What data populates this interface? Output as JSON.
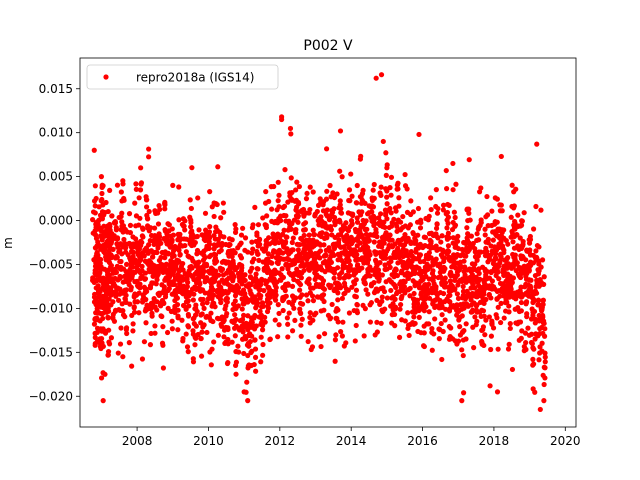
{
  "chart_data": {
    "type": "scatter",
    "title": "P002 V",
    "xlabel": "",
    "ylabel": "m",
    "xlim": [
      2006.4,
      2020.3
    ],
    "ylim": [
      -0.0235,
      0.0185
    ],
    "xticks": [
      2008,
      2010,
      2012,
      2014,
      2016,
      2018,
      2020
    ],
    "xtick_labels": [
      "2008",
      "2010",
      "2012",
      "2014",
      "2016",
      "2018",
      "2020"
    ],
    "yticks": [
      -0.02,
      -0.015,
      -0.01,
      -0.005,
      0.0,
      0.005,
      0.01,
      0.015
    ],
    "ytick_labels": [
      "−0.020",
      "−0.015",
      "−0.010",
      "−0.005",
      "0.000",
      "0.005",
      "0.010",
      "0.015"
    ],
    "grid": false,
    "legend_position": "top-left",
    "series": [
      {
        "name": "repro2018a (IGS14)",
        "color": "#ff0000",
        "marker": "circle",
        "x": [
          2006.8,
          2006.85,
          2006.9,
          2006.95,
          2007.0,
          2007.05,
          2007.1,
          2007.15,
          2007.2,
          2007.25,
          2007.3,
          2007.4,
          2007.5,
          2007.6,
          2007.7,
          2007.8,
          2007.9,
          2008.0,
          2008.1,
          2008.2,
          2008.3,
          2008.4,
          2008.5,
          2008.6,
          2008.7,
          2008.8,
          2008.9,
          2009.0,
          2009.1,
          2009.2,
          2009.3,
          2009.4,
          2009.5,
          2009.6,
          2009.7,
          2009.8,
          2009.9,
          2010.0,
          2010.1,
          2010.2,
          2010.3,
          2010.4,
          2010.5,
          2010.6,
          2010.7,
          2010.8,
          2010.9,
          2011.0,
          2011.1,
          2011.2,
          2011.3,
          2011.4,
          2011.5,
          2011.6,
          2011.7,
          2011.8,
          2011.9,
          2012.0,
          2012.1,
          2012.2,
          2012.3,
          2012.4,
          2012.5,
          2012.6,
          2012.7,
          2012.8,
          2012.9,
          2013.0,
          2013.1,
          2013.2,
          2013.3,
          2013.4,
          2013.5,
          2013.6,
          2013.7,
          2013.8,
          2013.9,
          2014.0,
          2014.1,
          2014.2,
          2014.3,
          2014.4,
          2014.5,
          2014.6,
          2014.7,
          2014.8,
          2014.9,
          2015.0,
          2015.1,
          2015.2,
          2015.3,
          2015.4,
          2015.5,
          2015.6,
          2015.7,
          2015.8,
          2015.9,
          2016.0,
          2016.1,
          2016.2,
          2016.3,
          2016.4,
          2016.5,
          2016.6,
          2016.7,
          2016.8,
          2016.9,
          2017.0,
          2017.1,
          2017.2,
          2017.3,
          2017.4,
          2017.5,
          2017.6,
          2017.7,
          2017.8,
          2017.9,
          2018.0,
          2018.1,
          2018.2,
          2018.3,
          2018.4,
          2018.5,
          2018.6,
          2018.7,
          2018.8,
          2018.9,
          2019.0,
          2019.1,
          2019.2,
          2019.3,
          2019.4,
          2006.8,
          2007.05,
          2007.1,
          2007.0,
          2007.6,
          2008.1,
          2009.0,
          2011.0,
          2011.1,
          2011.2,
          2011.3,
          2012.05,
          2012.05,
          2013.7,
          2014.7,
          2014.85,
          2014.9,
          2015.0,
          2015.9,
          2016.85,
          2017.1,
          2017.15,
          2018.1,
          2019.2,
          2019.3,
          2019.4
        ],
        "y": [
          -0.003,
          -0.008,
          -0.006,
          -0.004,
          -0.011,
          -0.002,
          -0.007,
          -0.005,
          -0.009,
          -0.003,
          -0.006,
          -0.004,
          -0.007,
          -0.002,
          -0.008,
          -0.005,
          -0.006,
          -0.004,
          -0.003,
          -0.007,
          -0.002,
          -0.006,
          -0.005,
          -0.003,
          -0.008,
          -0.004,
          -0.006,
          -0.005,
          -0.007,
          -0.003,
          -0.006,
          -0.008,
          -0.004,
          -0.009,
          -0.005,
          -0.007,
          -0.006,
          -0.005,
          -0.008,
          -0.004,
          -0.007,
          -0.006,
          -0.009,
          -0.005,
          -0.008,
          -0.011,
          -0.007,
          -0.009,
          -0.012,
          -0.008,
          -0.01,
          -0.006,
          -0.009,
          -0.004,
          -0.006,
          -0.003,
          -0.005,
          -0.002,
          -0.004,
          -0.006,
          -0.001,
          -0.005,
          -0.003,
          -0.007,
          -0.002,
          -0.005,
          -0.006,
          -0.004,
          -0.003,
          -0.006,
          -0.002,
          -0.005,
          -0.004,
          -0.007,
          -0.003,
          -0.005,
          -0.004,
          -0.002,
          -0.006,
          -0.003,
          -0.001,
          -0.005,
          -0.004,
          -0.002,
          -0.006,
          -0.003,
          -0.005,
          -0.001,
          -0.004,
          -0.006,
          -0.002,
          -0.005,
          -0.003,
          -0.006,
          -0.004,
          -0.007,
          -0.005,
          -0.008,
          -0.006,
          -0.004,
          -0.007,
          -0.005,
          -0.009,
          -0.006,
          -0.003,
          -0.008,
          -0.005,
          -0.007,
          -0.009,
          -0.006,
          -0.004,
          -0.008,
          -0.007,
          -0.005,
          -0.01,
          -0.006,
          -0.008,
          -0.005,
          -0.007,
          -0.004,
          -0.006,
          -0.008,
          -0.005,
          -0.003,
          -0.007,
          -0.004,
          -0.008,
          -0.006,
          -0.01,
          -0.007,
          -0.009,
          -0.012,
          0.008,
          -0.0205,
          -0.0175,
          0.005,
          -0.0155,
          0.006,
          0.004,
          -0.0195,
          -0.0205,
          -0.0165,
          0.0015,
          0.0115,
          0.0118,
          0.0102,
          0.0162,
          0.0166,
          0.009,
          0.006,
          0.0098,
          0.0065,
          -0.0205,
          -0.0196,
          -0.0195,
          0.0087,
          -0.0215,
          -0.0205
        ]
      }
    ],
    "axes": {
      "scatter_cloud_seed": 7
    }
  }
}
